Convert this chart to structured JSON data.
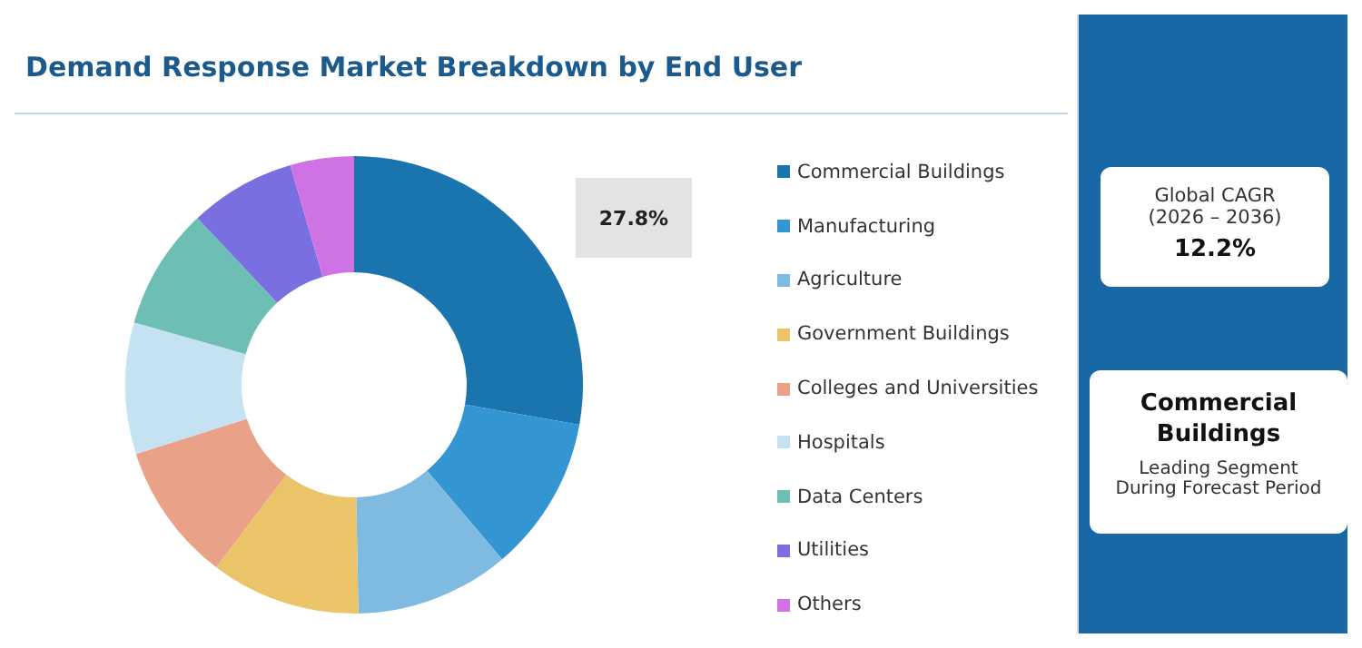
{
  "chart_data": {
    "type": "donut",
    "title": "Demand Response Market Breakdown by End User",
    "categories": [
      "Commercial Buildings",
      "Manufacturing",
      "Agriculture",
      "Government Buildings",
      "Colleges and Universities",
      "Hospitals",
      "Data Centers",
      "Utilities",
      "Others"
    ],
    "values": [
      27.8,
      11.0,
      10.9,
      10.6,
      9.8,
      9.3,
      8.6,
      7.5,
      4.5
    ],
    "colors": [
      "#1a74ad",
      "#3396d3",
      "#7fbae0",
      "#ebc46a",
      "#e9a187",
      "#c4e2f2",
      "#6dbfb5",
      "#7a6fe0",
      "#cf72e3"
    ],
    "value_labels": [
      "27.8%",
      null,
      null,
      null,
      null,
      null,
      null,
      null,
      null
    ],
    "legend": "right",
    "annotations": [
      "Global CAGR",
      "(2026 – 2036)",
      "12.2%",
      "Commercial Buildings",
      "Leading Segment",
      "During Forecast Period"
    ]
  }
}
